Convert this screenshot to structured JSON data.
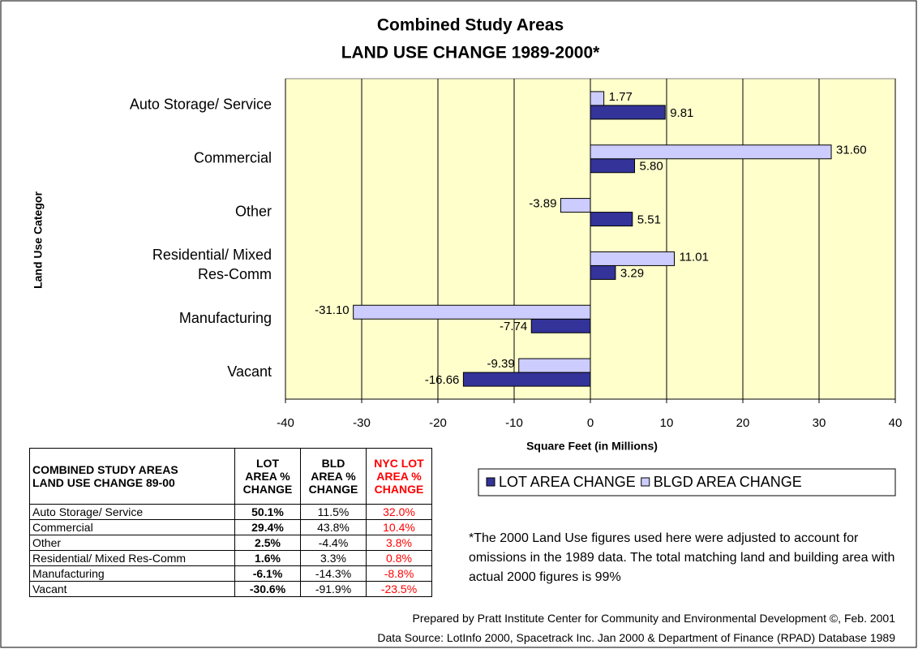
{
  "chart_data": {
    "type": "hbar",
    "title": "Combined Study Areas",
    "subtitle": "LAND USE CHANGE 1989-2000*",
    "ylabel": "Land Use Categor",
    "xlabel": "Square Feet (in Millions)",
    "categories": [
      "Auto Storage/ Service",
      "Commercial",
      "Other",
      "Residential/ Mixed Res-Comm",
      "Manufacturing",
      "Vacant"
    ],
    "series": [
      {
        "name": "LOT AREA CHANGE",
        "color": "#333399",
        "values": [
          9.81,
          5.8,
          5.51,
          3.29,
          -7.74,
          -16.66
        ],
        "value_labels": [
          "9.81",
          "5.80",
          "5.51",
          "3.29",
          "-7.74",
          "-16.66"
        ]
      },
      {
        "name": "BLGD AREA CHANGE",
        "color": "#ccccff",
        "values": [
          1.77,
          31.6,
          -3.89,
          11.01,
          -31.1,
          -9.39
        ],
        "value_labels": [
          "1.77",
          "31.60",
          "-3.89",
          "11.01",
          "-31.10",
          "-9.39"
        ]
      }
    ],
    "xlim": [
      -40,
      40
    ],
    "xticks": [
      -40,
      -30,
      -20,
      -10,
      0,
      10,
      20,
      30,
      40
    ],
    "grid": true
  },
  "table": {
    "header": [
      "COMBINED STUDY AREAS\nLAND USE CHANGE 89-00",
      "LOT\nAREA %\nCHANGE",
      "BLD\nAREA %\nCHANGE",
      "NYC LOT\nAREA %\nCHANGE"
    ],
    "rows": [
      [
        "Auto Storage/ Service",
        "50.1%",
        "11.5%",
        "32.0%"
      ],
      [
        "Commercial",
        "29.4%",
        "43.8%",
        "10.4%"
      ],
      [
        "Other",
        "2.5%",
        "-4.4%",
        "3.8%"
      ],
      [
        "Residential/ Mixed Res-Comm",
        "1.6%",
        "3.3%",
        "0.8%"
      ],
      [
        "Manufacturing",
        "-6.1%",
        "-14.3%",
        "-8.8%"
      ],
      [
        "Vacant",
        "-30.6%",
        "-91.9%",
        "-23.5%"
      ]
    ]
  },
  "footnote": "*The 2000 Land Use figures used here were adjusted to account for omissions in the 1989 data.  The total matching land and building area with actual 2000 figures is 99%",
  "credits": [
    "Prepared by Pratt Institute Center for Community and Environmental Development ©, Feb. 2001",
    "Data Source:  LotInfo 2000, Spacetrack Inc. Jan 2000 &  Department of Finance (RPAD) Database 1989"
  ]
}
